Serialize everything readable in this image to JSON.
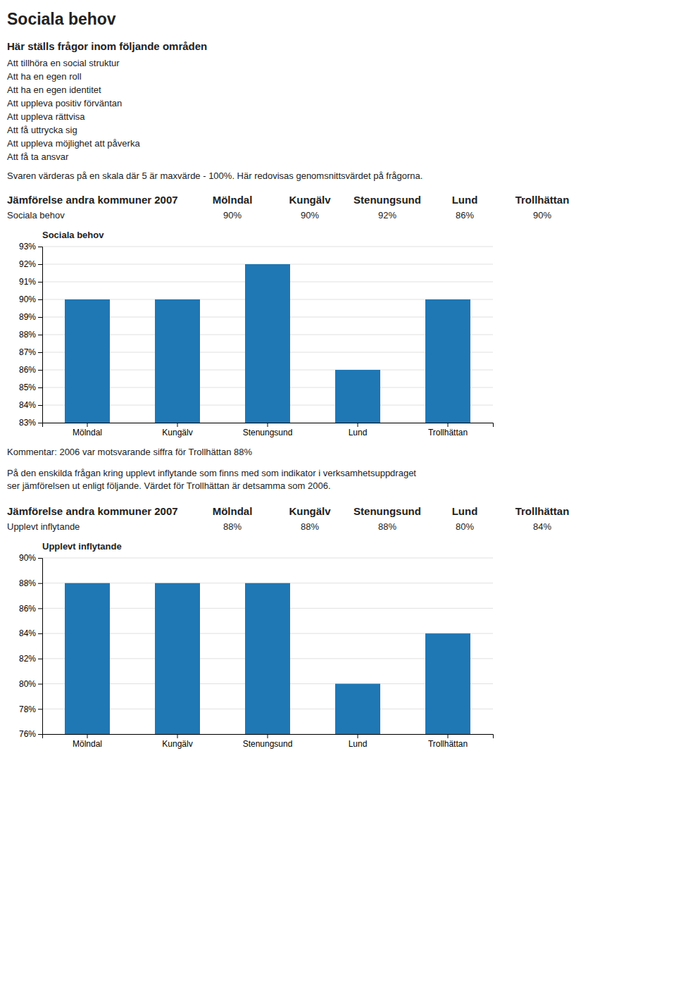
{
  "title": "Sociala behov",
  "intro_heading": "Här ställs frågor inom följande områden",
  "intro_items": [
    "Att tillhöra en social struktur",
    "Att ha en egen roll",
    "Att ha en egen identitet",
    "Att uppleva positiv förväntan",
    "Att uppleva rättvisa",
    "Att få uttrycka sig",
    "Att uppleva möjlighet att påverka",
    "Att få ta ansvar"
  ],
  "scale_text": "Svaren värderas på en skala där 5 är maxvärde - 100%. Här redovisas genomsnittsvärdet på frågorna.",
  "comparison_header": "Jämförelse andra kommuner 2007",
  "tables": [
    {
      "row_label": "Sociala behov",
      "columns": [
        "Mölndal",
        "Kungälv",
        "Stenungsund",
        "Lund",
        "Trollhättan"
      ],
      "cells": [
        "90%",
        "90%",
        "92%",
        "86%",
        "90%"
      ]
    },
    {
      "row_label": "Upplevt inflytande",
      "columns": [
        "Mölndal",
        "Kungälv",
        "Stenungsund",
        "Lund",
        "Trollhättan"
      ],
      "cells": [
        "88%",
        "88%",
        "88%",
        "80%",
        "84%"
      ]
    }
  ],
  "comment": "Kommentar: 2006 var motsvarande siffra för Trollhättan 88%",
  "body_text": [
    "På den enskilda frågan kring upplevt inflytande som finns med som indikator i verksamhetsuppdraget",
    "ser jämförelsen ut enligt följande. Värdet för Trollhättan är detsamma som 2006."
  ],
  "chart_data": [
    {
      "type": "bar",
      "title": "Sociala behov",
      "categories": [
        "Mölndal",
        "Kungälv",
        "Stenungsund",
        "Lund",
        "Trollhättan"
      ],
      "values": [
        90,
        90,
        92,
        86,
        90
      ],
      "ylim": [
        83,
        93
      ],
      "yticks": [
        {
          "value": 83,
          "label": "83%"
        },
        {
          "value": 84,
          "label": "84%"
        },
        {
          "value": 85,
          "label": "85%"
        },
        {
          "value": 86,
          "label": "86%"
        },
        {
          "value": 87,
          "label": "87%"
        },
        {
          "value": 88,
          "label": "88%"
        },
        {
          "value": 89,
          "label": "89%"
        },
        {
          "value": 90,
          "label": "90%"
        },
        {
          "value": 91,
          "label": "91%"
        },
        {
          "value": 92,
          "label": "92%"
        },
        {
          "value": 93,
          "label": "93%"
        }
      ],
      "grid": true
    },
    {
      "type": "bar",
      "title": "Upplevt inflytande",
      "categories": [
        "Mölndal",
        "Kungälv",
        "Stenungsund",
        "Lund",
        "Trollhättan"
      ],
      "values": [
        88,
        88,
        88,
        80,
        84
      ],
      "ylim": [
        76,
        90
      ],
      "yticks": [
        {
          "value": 76,
          "label": "76%"
        },
        {
          "value": 78,
          "label": "78%"
        },
        {
          "value": 80,
          "label": "80%"
        },
        {
          "value": 82,
          "label": "82%"
        },
        {
          "value": 84,
          "label": "84%"
        },
        {
          "value": 86,
          "label": "86%"
        },
        {
          "value": 88,
          "label": "88%"
        },
        {
          "value": 90,
          "label": "90%"
        }
      ],
      "grid": true
    }
  ]
}
